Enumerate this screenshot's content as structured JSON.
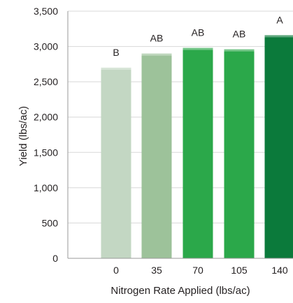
{
  "chart_data": {
    "type": "bar",
    "title": "",
    "xlabel": "Nitrogen Rate Applied (lbs/ac)",
    "ylabel": "Yield (lbs/ac)",
    "categories": [
      "0",
      "35",
      "70",
      "105",
      "140"
    ],
    "values": [
      2700,
      2900,
      2980,
      2960,
      3160
    ],
    "significance_letters": [
      "B",
      "AB",
      "AB",
      "AB",
      "A"
    ],
    "bar_colors": [
      "#c3d7c3",
      "#9dc29a",
      "#2ba84a",
      "#2ba84a",
      "#0b7a3b"
    ],
    "ylim": [
      0,
      3500
    ],
    "yticks": [
      "0",
      "500",
      "1,000",
      "1,500",
      "2,000",
      "2,500",
      "3,000",
      "3,500"
    ],
    "grid": true,
    "legend": "none"
  }
}
